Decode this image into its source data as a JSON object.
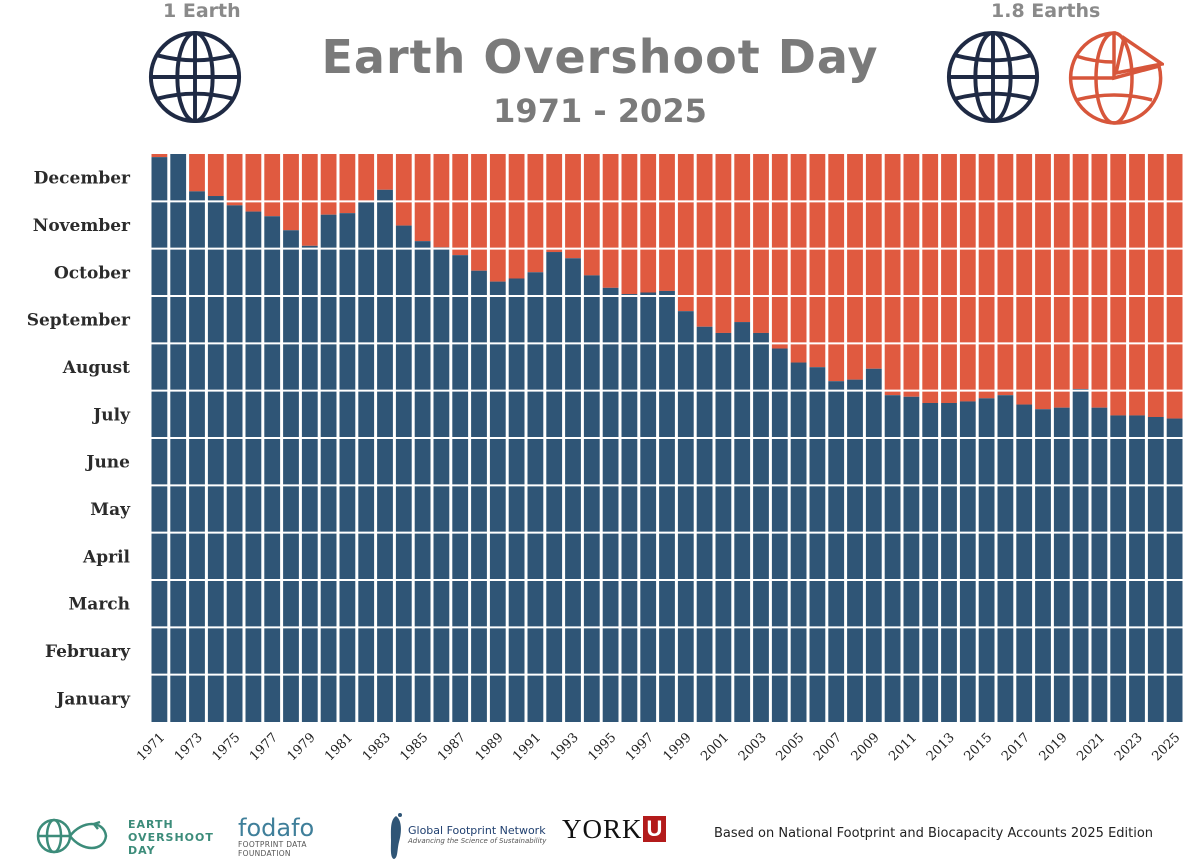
{
  "header": {
    "title": "Earth Overshoot Day",
    "subtitle": "1971 - 2025",
    "left_label": "1 Earth",
    "right_label": "1.8 Earths"
  },
  "colors": {
    "blue": "#2f5576",
    "orange": "#e05a40",
    "title_gray": "#7a7a7a",
    "globe_dark": "#1f2a44"
  },
  "icons": [
    "globe-icon",
    "partial-globe-icon"
  ],
  "chart_data": {
    "type": "bar",
    "stacked": true,
    "ylabels": [
      "December",
      "November",
      "October",
      "September",
      "August",
      "July",
      "June",
      "May",
      "April",
      "March",
      "February",
      "January"
    ],
    "ylim_days": [
      0,
      365
    ],
    "x": [
      1971,
      1972,
      1973,
      1974,
      1975,
      1976,
      1977,
      1978,
      1979,
      1980,
      1981,
      1982,
      1983,
      1984,
      1985,
      1986,
      1987,
      1988,
      1989,
      1990,
      1991,
      1992,
      1993,
      1994,
      1995,
      1996,
      1997,
      1998,
      1999,
      2000,
      2001,
      2002,
      2003,
      2004,
      2005,
      2006,
      2007,
      2008,
      2009,
      2010,
      2011,
      2012,
      2013,
      2014,
      2015,
      2016,
      2017,
      2018,
      2019,
      2020,
      2021,
      2022,
      2023,
      2024,
      2025
    ],
    "xticks": [
      1971,
      1973,
      1975,
      1977,
      1979,
      1981,
      1983,
      1985,
      1987,
      1989,
      1991,
      1993,
      1995,
      1997,
      1999,
      2001,
      2003,
      2005,
      2007,
      2009,
      2011,
      2013,
      2015,
      2017,
      2019,
      2021,
      2023,
      2025
    ],
    "series": [
      {
        "name": "overshoot_day",
        "values": [
          363,
          365,
          341,
          338,
          332,
          328,
          325,
          316,
          306,
          326,
          327,
          334,
          342,
          319,
          309,
          305,
          300,
          290,
          283,
          285,
          289,
          302,
          298,
          287,
          279,
          275,
          276,
          277,
          264,
          254,
          250,
          257,
          250,
          240,
          231,
          228,
          219,
          220,
          227,
          210,
          209,
          205,
          205,
          206,
          208,
          210,
          204,
          201,
          202,
          214,
          202,
          197,
          197,
          196,
          195
        ]
      }
    ]
  },
  "footer": {
    "earth_overshoot_line1": "EARTH",
    "earth_overshoot_line2": "OVERSHOOT",
    "earth_overshoot_line3": "DAY",
    "fodafo_name": "fodafo",
    "fodafo_sub": "FOOTPRINT DATA FOUNDATION",
    "gfn_name": "Global Footprint Network",
    "gfn_sub": "Advancing the Science of Sustainability",
    "york": "YORK",
    "york_u": "U",
    "source": "Based on National Footprint and Biocapacity Accounts 2025 Edition"
  }
}
